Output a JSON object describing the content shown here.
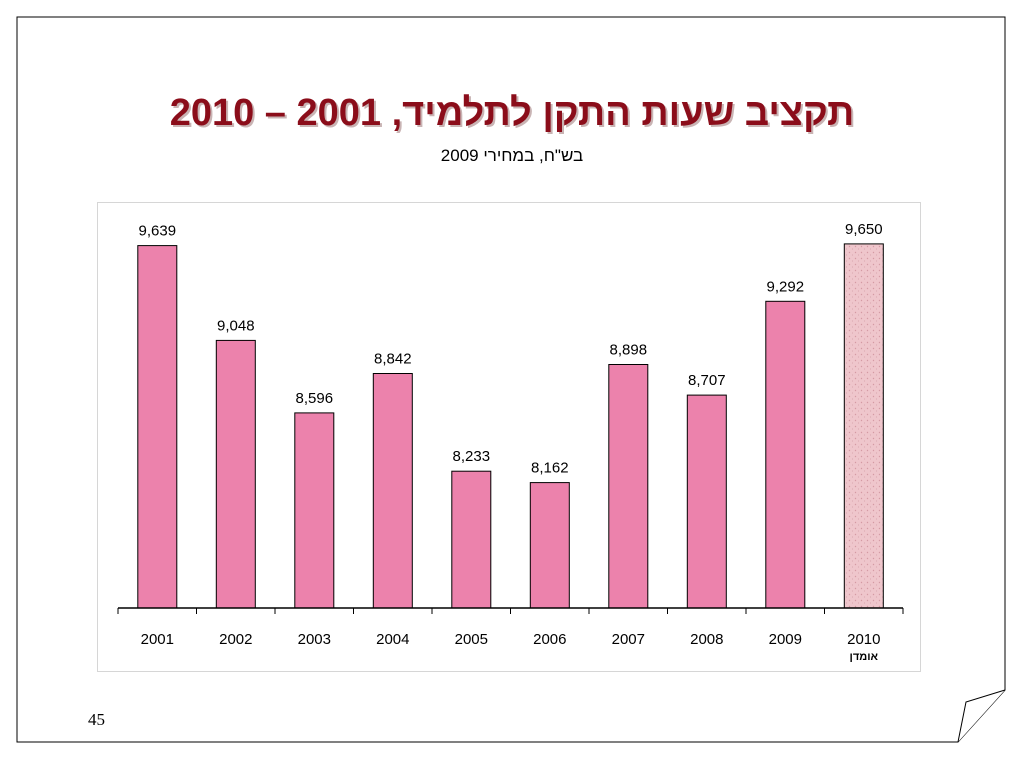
{
  "slide": {
    "title": "תקציב שעות התקן לתלמיד, 2001 – 2010",
    "subtitle": "בש\"ח, במחירי 2009",
    "page_number": "45"
  },
  "colors": {
    "title": "#8b0d1a",
    "bar_fill": "#ec82ac",
    "estimate_fill": "#efc6cc",
    "bar_stroke": "#000000"
  },
  "chart_data": {
    "type": "bar",
    "title": "תקציב שעות התקן לתלמיד, 2001 – 2010",
    "subtitle": "בש\"ח, במחירי 2009",
    "xlabel": "",
    "ylabel": "",
    "categories": [
      "2001",
      "2002",
      "2003",
      "2004",
      "2005",
      "2006",
      "2007",
      "2008",
      "2009",
      "2010"
    ],
    "category_notes": [
      "",
      "",
      "",
      "",
      "",
      "",
      "",
      "",
      "",
      "אומדן"
    ],
    "values": [
      9639,
      9048,
      8596,
      8842,
      8233,
      8162,
      8898,
      8707,
      9292,
      9650
    ],
    "value_labels": [
      "9,639",
      "9,048",
      "8,596",
      "8,842",
      "8,233",
      "8,162",
      "8,898",
      "8,707",
      "9,292",
      "9,650"
    ],
    "estimated": [
      false,
      false,
      false,
      false,
      false,
      false,
      false,
      false,
      false,
      true
    ],
    "ylim": [
      7380,
      9780
    ],
    "grid": false,
    "legend": "none"
  }
}
